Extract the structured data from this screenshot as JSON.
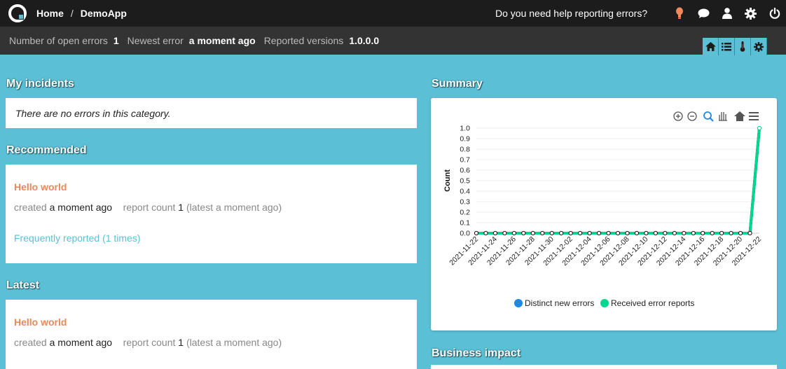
{
  "topbar": {
    "crumb_home": "Home",
    "crumb_sep": "/",
    "crumb_app": "DemoApp",
    "help_text": "Do you need help reporting errors?",
    "icons": [
      "lightbulb-icon",
      "chat-icon",
      "user-icon",
      "gear-icon",
      "power-icon"
    ]
  },
  "status": {
    "open_label": "Number of open errors",
    "open_value": "1",
    "newest_label": "Newest error",
    "newest_value": "a moment ago",
    "versions_label": "Reported versions",
    "versions_value": "1.0.0.0"
  },
  "sections": {
    "my_incidents": "My incidents",
    "recommended": "Recommended",
    "latest": "Latest",
    "summary": "Summary",
    "business_impact": "Business impact"
  },
  "my_incidents": {
    "empty": "There are no errors in this category."
  },
  "recommended": {
    "title": "Hello world",
    "created_label": "created",
    "created_value": "a moment ago",
    "count_label": "report count",
    "count_value": "1",
    "latest_note": "(latest a moment ago)",
    "freq_link": "Frequently reported (1 times)"
  },
  "latest": {
    "title": "Hello world",
    "created_label": "created",
    "created_value": "a moment ago",
    "count_label": "report count",
    "count_value": "1",
    "latest_note": "(latest a moment ago)"
  },
  "colors": {
    "accent": "#5bc0d5",
    "incident_title": "#e8895c",
    "series_new": "#1e88e5",
    "series_reports": "#00d68f"
  },
  "chart_data": {
    "type": "line",
    "ylabel": "Count",
    "ylim": [
      0,
      1
    ],
    "yticks": [
      "0.0",
      "0.1",
      "0.2",
      "0.3",
      "0.4",
      "0.5",
      "0.6",
      "0.7",
      "0.8",
      "0.9",
      "1.0"
    ],
    "x": [
      "2021-11-22",
      "2021-11-23",
      "2021-11-24",
      "2021-11-25",
      "2021-11-26",
      "2021-11-27",
      "2021-11-28",
      "2021-11-29",
      "2021-11-30",
      "2021-12-01",
      "2021-12-02",
      "2021-12-03",
      "2021-12-04",
      "2021-12-05",
      "2021-12-06",
      "2021-12-07",
      "2021-12-08",
      "2021-12-09",
      "2021-12-10",
      "2021-12-11",
      "2021-12-12",
      "2021-12-13",
      "2021-12-14",
      "2021-12-15",
      "2021-12-16",
      "2021-12-17",
      "2021-12-18",
      "2021-12-19",
      "2021-12-20",
      "2021-12-21",
      "2021-12-22"
    ],
    "xtick_labels": [
      "2021-11-22",
      "2021-11-24",
      "2021-11-26",
      "2021-11-28",
      "2021-11-30",
      "2021-12-02",
      "2021-12-04",
      "2021-12-06",
      "2021-12-08",
      "2021-12-10",
      "2021-12-12",
      "2021-12-14",
      "2021-12-16",
      "2021-12-18",
      "2021-12-20",
      "2021-12-22"
    ],
    "series": [
      {
        "name": "Distinct new errors",
        "values": [
          0,
          0,
          0,
          0,
          0,
          0,
          0,
          0,
          0,
          0,
          0,
          0,
          0,
          0,
          0,
          0,
          0,
          0,
          0,
          0,
          0,
          0,
          0,
          0,
          0,
          0,
          0,
          0,
          0,
          0,
          1
        ]
      },
      {
        "name": "Received error reports",
        "values": [
          0,
          0,
          0,
          0,
          0,
          0,
          0,
          0,
          0,
          0,
          0,
          0,
          0,
          0,
          0,
          0,
          0,
          0,
          0,
          0,
          0,
          0,
          0,
          0,
          0,
          0,
          0,
          0,
          0,
          0,
          1
        ]
      }
    ],
    "legend": "bottom",
    "toolbar_icons": [
      "zoom-in-icon",
      "zoom-out-icon",
      "magnifier-icon",
      "pan-icon",
      "home-icon",
      "menu-icon"
    ]
  }
}
